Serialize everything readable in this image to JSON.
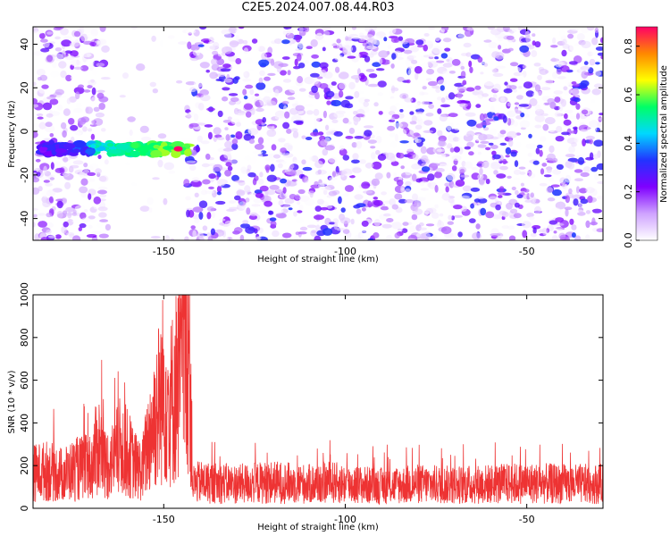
{
  "title": "C2E5.2024.007.08.44.R03",
  "chart_data": [
    {
      "type": "heatmap",
      "title": "C2E5.2024.007.08.44.R03",
      "xlabel": "Height of straight line (km)",
      "ylabel": "Frequency (Hz)",
      "xlim": [
        -186,
        -29
      ],
      "ylim": [
        -50,
        48
      ],
      "x_ticks": [
        -150,
        -100,
        -50
      ],
      "y_ticks": [
        -40,
        -20,
        0,
        20,
        40
      ],
      "x_tick_labels": [
        "-150",
        "-100",
        "-50"
      ],
      "y_tick_labels": [
        "-40",
        "-20",
        "0",
        "20",
        "40"
      ],
      "grid": false,
      "colorbar": {
        "label": "Normalized spectral amplitude",
        "range": [
          0,
          0.88
        ],
        "ticks": [
          0,
          0.2,
          0.4,
          0.6,
          0.8
        ],
        "tick_labels": [
          "0.0",
          "0.2",
          "0.4",
          "0.6",
          "0.8"
        ],
        "colors": [
          "#ffffff",
          "#cfa3ff",
          "#7f00ff",
          "#2233ff",
          "#00d8ff",
          "#00ff66",
          "#ffff00",
          "#ff8800",
          "#ff0066"
        ]
      },
      "signal_band": {
        "x_range": [
          -184,
          -143
        ],
        "frequency_center": -8,
        "peak_x": -146,
        "peak_value": 0.88
      },
      "quiet_region": {
        "x_range": [
          -166,
          -144
        ]
      }
    },
    {
      "type": "line",
      "xlabel": "Height of straight line (km)",
      "ylabel": "SNR (10 * v/v)",
      "xlim": [
        -186,
        -29
      ],
      "ylim": [
        0,
        1000
      ],
      "x_ticks": [
        -150,
        -100,
        -50
      ],
      "y_ticks": [
        0,
        200,
        400,
        600,
        800,
        1000
      ],
      "x_tick_labels": [
        "-150",
        "-100",
        "-50"
      ],
      "y_tick_labels": [
        "0",
        "200",
        "400",
        "600",
        "800",
        "1000"
      ],
      "grid": false,
      "series_color": "#ee3333",
      "series_points": [
        [
          -186,
          190
        ],
        [
          -182,
          200
        ],
        [
          -178,
          180
        ],
        [
          -174,
          210
        ],
        [
          -170,
          220
        ],
        [
          -168,
          350
        ],
        [
          -166,
          230
        ],
        [
          -164,
          260
        ],
        [
          -162,
          330
        ],
        [
          -160,
          300
        ],
        [
          -158,
          230
        ],
        [
          -156,
          200
        ],
        [
          -154,
          380
        ],
        [
          -152,
          520
        ],
        [
          -150,
          650
        ],
        [
          -148,
          560
        ],
        [
          -146,
          700
        ],
        [
          -144,
          950
        ],
        [
          -143,
          920
        ],
        [
          -142,
          130
        ],
        [
          -140,
          140
        ],
        [
          -130,
          130
        ],
        [
          -120,
          140
        ],
        [
          -110,
          130
        ],
        [
          -104,
          140
        ],
        [
          -100,
          130
        ],
        [
          -90,
          120
        ],
        [
          -80,
          130
        ],
        [
          -70,
          125
        ],
        [
          -60,
          130
        ],
        [
          -50,
          135
        ],
        [
          -40,
          130
        ],
        [
          -29,
          130
        ]
      ]
    }
  ]
}
